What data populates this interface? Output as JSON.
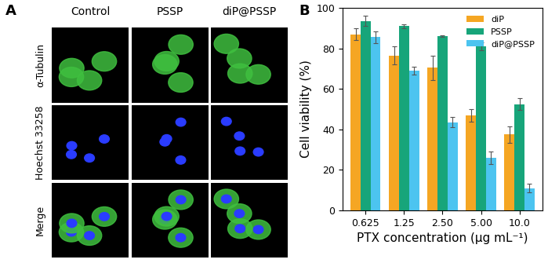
{
  "image_grid": {
    "panel_label": "A",
    "columns": [
      "Control",
      "PSSP",
      "diP@PSSP"
    ],
    "rows": [
      "α-Tubulin",
      "Hoechst 33258",
      "Merge"
    ]
  },
  "chart_data": {
    "type": "bar",
    "panel_label": "B",
    "categories": [
      "0.625",
      "1.25",
      "2.50",
      "5.00",
      "10.0"
    ],
    "x_label": "PTX concentration (μg mL⁻¹)",
    "y_label": "Cell viability (%)",
    "series": [
      {
        "name": "diP",
        "color": "#f5a623",
        "values": [
          87,
          76.5,
          70.5,
          47,
          37.5
        ],
        "errors": [
          3,
          4.5,
          6,
          3,
          4
        ]
      },
      {
        "name": "PSSP",
        "color": "#17a57a",
        "values": [
          93.5,
          91,
          86,
          81,
          52.5
        ],
        "errors": [
          2.5,
          1,
          0.3,
          2,
          3
        ]
      },
      {
        "name": "diP@PSSP",
        "color": "#4cc4f0",
        "values": [
          85.5,
          69,
          43.5,
          26,
          11
        ],
        "errors": [
          3,
          2,
          2.5,
          3,
          2
        ]
      }
    ],
    "ylim": [
      0,
      100
    ],
    "yticks": [
      0,
      20,
      40,
      60,
      80,
      100
    ],
    "legend": "upper right",
    "grid": false
  }
}
